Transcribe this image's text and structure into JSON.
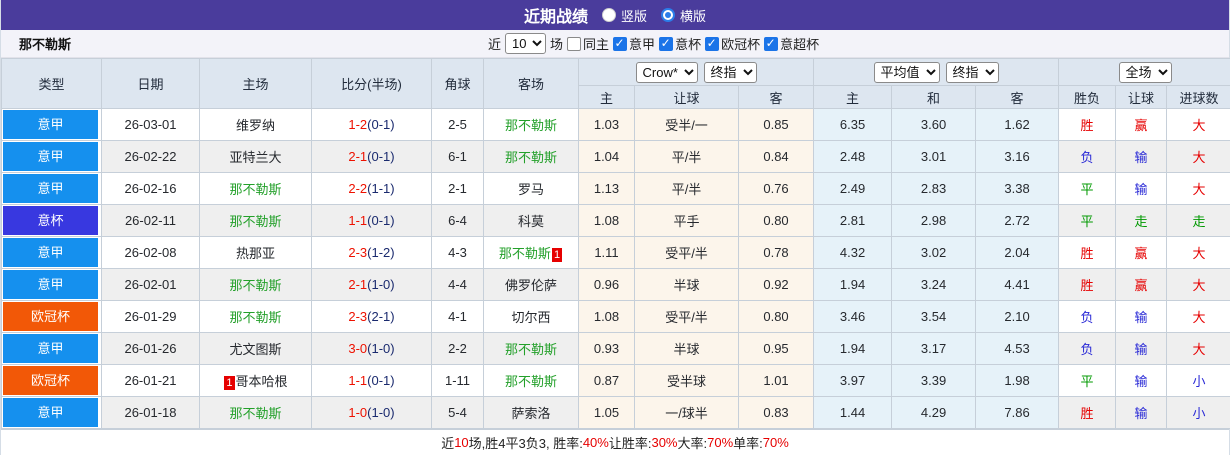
{
  "titlebar": {
    "title": "近期战绩",
    "radios": [
      {
        "label": "竖版",
        "selected": false
      },
      {
        "label": "横版",
        "selected": true
      }
    ]
  },
  "controls": {
    "team": "那不勒斯",
    "near_label": "近",
    "games_value": "10",
    "games_suffix": "场",
    "same_home_label": "同主",
    "same_home_checked": false,
    "leagues": [
      {
        "label": "意甲",
        "checked": true
      },
      {
        "label": "意杯",
        "checked": true
      },
      {
        "label": "欧冠杯",
        "checked": true
      },
      {
        "label": "意超杯",
        "checked": true
      }
    ]
  },
  "table": {
    "columns": {
      "type": "类型",
      "date": "日期",
      "home": "主场",
      "score": "比分(半场)",
      "corner": "角球",
      "away": "客场",
      "odds_home": "主",
      "odds_handicap": "让球",
      "odds_away": "客",
      "avg_home": "主",
      "avg_draw": "和",
      "avg_away": "客",
      "result_wl": "胜负",
      "result_handicap": "让球",
      "result_goals": "进球数"
    },
    "selects": {
      "book": "Crow*",
      "book_stage": "终指",
      "avg": "平均值",
      "avg_stage": "终指",
      "scope": "全场"
    },
    "league_colors": {
      "seriea": "#1590ee",
      "coppa": "#3838e0",
      "ucl": "#f25807"
    },
    "result_colors": {
      "red": "#e60000",
      "blue": "#2929d6",
      "green": "#009900"
    },
    "team_highlight_color": "#23a02a",
    "rows": [
      {
        "league": "意甲",
        "league_key": "seriea",
        "date": "26-03-01",
        "home": {
          "name": "维罗纳",
          "highlight": false,
          "badge_before": "",
          "badge_after": ""
        },
        "score_ft": "1-2",
        "score_ht": "(0-1)",
        "corner": "2-5",
        "away": {
          "name": "那不勒斯",
          "highlight": true,
          "badge_before": "",
          "badge_after": ""
        },
        "odds": [
          "1.03",
          "受半/一",
          "0.85"
        ],
        "avg": [
          "6.35",
          "3.60",
          "1.62"
        ],
        "results": [
          {
            "text": "胜",
            "color": "red"
          },
          {
            "text": "赢",
            "color": "red"
          },
          {
            "text": "大",
            "color": "red"
          }
        ]
      },
      {
        "league": "意甲",
        "league_key": "seriea",
        "date": "26-02-22",
        "home": {
          "name": "亚特兰大",
          "highlight": false,
          "badge_before": "",
          "badge_after": ""
        },
        "score_ft": "2-1",
        "score_ht": "(0-1)",
        "corner": "6-1",
        "away": {
          "name": "那不勒斯",
          "highlight": true,
          "badge_before": "",
          "badge_after": ""
        },
        "odds": [
          "1.04",
          "平/半",
          "0.84"
        ],
        "avg": [
          "2.48",
          "3.01",
          "3.16"
        ],
        "results": [
          {
            "text": "负",
            "color": "blue"
          },
          {
            "text": "输",
            "color": "blue"
          },
          {
            "text": "大",
            "color": "red"
          }
        ]
      },
      {
        "league": "意甲",
        "league_key": "seriea",
        "date": "26-02-16",
        "home": {
          "name": "那不勒斯",
          "highlight": true,
          "badge_before": "",
          "badge_after": ""
        },
        "score_ft": "2-2",
        "score_ht": "(1-1)",
        "corner": "2-1",
        "away": {
          "name": "罗马",
          "highlight": false,
          "badge_before": "",
          "badge_after": ""
        },
        "odds": [
          "1.13",
          "平/半",
          "0.76"
        ],
        "avg": [
          "2.49",
          "2.83",
          "3.38"
        ],
        "results": [
          {
            "text": "平",
            "color": "green"
          },
          {
            "text": "输",
            "color": "blue"
          },
          {
            "text": "大",
            "color": "red"
          }
        ]
      },
      {
        "league": "意杯",
        "league_key": "coppa",
        "date": "26-02-11",
        "home": {
          "name": "那不勒斯",
          "highlight": true,
          "badge_before": "",
          "badge_after": ""
        },
        "score_ft": "1-1",
        "score_ht": "(0-1)",
        "corner": "6-4",
        "away": {
          "name": "科莫",
          "highlight": false,
          "badge_before": "",
          "badge_after": ""
        },
        "odds": [
          "1.08",
          "平手",
          "0.80"
        ],
        "avg": [
          "2.81",
          "2.98",
          "2.72"
        ],
        "results": [
          {
            "text": "平",
            "color": "green"
          },
          {
            "text": "走",
            "color": "green"
          },
          {
            "text": "走",
            "color": "green"
          }
        ]
      },
      {
        "league": "意甲",
        "league_key": "seriea",
        "date": "26-02-08",
        "home": {
          "name": "热那亚",
          "highlight": false,
          "badge_before": "",
          "badge_after": ""
        },
        "score_ft": "2-3",
        "score_ht": "(1-2)",
        "corner": "4-3",
        "away": {
          "name": "那不勒斯",
          "highlight": true,
          "badge_before": "",
          "badge_after": "1"
        },
        "odds": [
          "1.11",
          "受平/半",
          "0.78"
        ],
        "avg": [
          "4.32",
          "3.02",
          "2.04"
        ],
        "results": [
          {
            "text": "胜",
            "color": "red"
          },
          {
            "text": "赢",
            "color": "red"
          },
          {
            "text": "大",
            "color": "red"
          }
        ]
      },
      {
        "league": "意甲",
        "league_key": "seriea",
        "date": "26-02-01",
        "home": {
          "name": "那不勒斯",
          "highlight": true,
          "badge_before": "",
          "badge_after": ""
        },
        "score_ft": "2-1",
        "score_ht": "(1-0)",
        "corner": "4-4",
        "away": {
          "name": "佛罗伦萨",
          "highlight": false,
          "badge_before": "",
          "badge_after": ""
        },
        "odds": [
          "0.96",
          "半球",
          "0.92"
        ],
        "avg": [
          "1.94",
          "3.24",
          "4.41"
        ],
        "results": [
          {
            "text": "胜",
            "color": "red"
          },
          {
            "text": "赢",
            "color": "red"
          },
          {
            "text": "大",
            "color": "red"
          }
        ]
      },
      {
        "league": "欧冠杯",
        "league_key": "ucl",
        "date": "26-01-29",
        "home": {
          "name": "那不勒斯",
          "highlight": true,
          "badge_before": "",
          "badge_after": ""
        },
        "score_ft": "2-3",
        "score_ht": "(2-1)",
        "corner": "4-1",
        "away": {
          "name": "切尔西",
          "highlight": false,
          "badge_before": "",
          "badge_after": ""
        },
        "odds": [
          "1.08",
          "受平/半",
          "0.80"
        ],
        "avg": [
          "3.46",
          "3.54",
          "2.10"
        ],
        "results": [
          {
            "text": "负",
            "color": "blue"
          },
          {
            "text": "输",
            "color": "blue"
          },
          {
            "text": "大",
            "color": "red"
          }
        ]
      },
      {
        "league": "意甲",
        "league_key": "seriea",
        "date": "26-01-26",
        "home": {
          "name": "尤文图斯",
          "highlight": false,
          "badge_before": "",
          "badge_after": ""
        },
        "score_ft": "3-0",
        "score_ht": "(1-0)",
        "corner": "2-2",
        "away": {
          "name": "那不勒斯",
          "highlight": true,
          "badge_before": "",
          "badge_after": ""
        },
        "odds": [
          "0.93",
          "半球",
          "0.95"
        ],
        "avg": [
          "1.94",
          "3.17",
          "4.53"
        ],
        "results": [
          {
            "text": "负",
            "color": "blue"
          },
          {
            "text": "输",
            "color": "blue"
          },
          {
            "text": "大",
            "color": "red"
          }
        ]
      },
      {
        "league": "欧冠杯",
        "league_key": "ucl",
        "date": "26-01-21",
        "home": {
          "name": "哥本哈根",
          "highlight": false,
          "badge_before": "1",
          "badge_after": ""
        },
        "score_ft": "1-1",
        "score_ht": "(0-1)",
        "corner": "1-11",
        "away": {
          "name": "那不勒斯",
          "highlight": true,
          "badge_before": "",
          "badge_after": ""
        },
        "odds": [
          "0.87",
          "受半球",
          "1.01"
        ],
        "avg": [
          "3.97",
          "3.39",
          "1.98"
        ],
        "results": [
          {
            "text": "平",
            "color": "green"
          },
          {
            "text": "输",
            "color": "blue"
          },
          {
            "text": "小",
            "color": "blue"
          }
        ]
      },
      {
        "league": "意甲",
        "league_key": "seriea",
        "date": "26-01-18",
        "home": {
          "name": "那不勒斯",
          "highlight": true,
          "badge_before": "",
          "badge_after": ""
        },
        "score_ft": "1-0",
        "score_ht": "(1-0)",
        "corner": "5-4",
        "away": {
          "name": "萨索洛",
          "highlight": false,
          "badge_before": "",
          "badge_after": ""
        },
        "odds": [
          "1.05",
          "一/球半",
          "0.83"
        ],
        "avg": [
          "1.44",
          "4.29",
          "7.86"
        ],
        "results": [
          {
            "text": "胜",
            "color": "red"
          },
          {
            "text": "输",
            "color": "blue"
          },
          {
            "text": "小",
            "color": "blue"
          }
        ]
      }
    ]
  },
  "footer": {
    "segments": [
      {
        "text": "近"
      },
      {
        "text": "10"
      },
      {
        "text": "场,胜4平3负3, 胜率:"
      },
      {
        "text": "40%"
      },
      {
        "text": " 让胜率:"
      },
      {
        "text": "30%"
      },
      {
        "text": " 大率:"
      },
      {
        "text": "70%"
      },
      {
        "text": " 单率:"
      },
      {
        "text": "70%"
      }
    ],
    "red_color": "#e60000"
  }
}
